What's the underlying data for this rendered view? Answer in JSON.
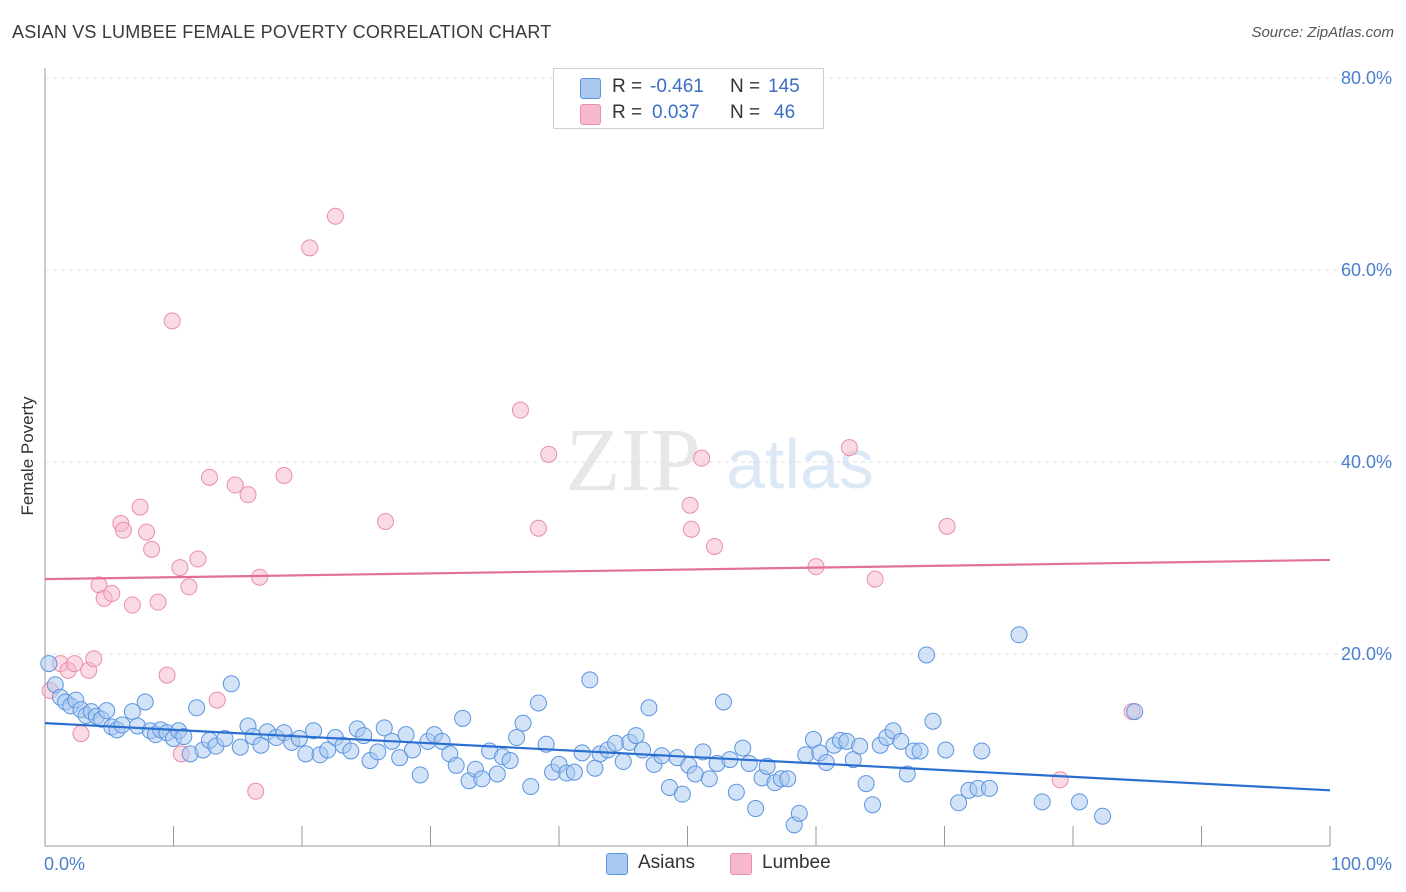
{
  "title": "ASIAN VS LUMBEE FEMALE POVERTY CORRELATION CHART",
  "source": "Source: ZipAtlas.com",
  "watermark": {
    "zip": "ZIP",
    "atlas": "atlas"
  },
  "legend": {
    "rows": [
      {
        "r_label": "R =",
        "r_value": "-0.461",
        "n_label": "N =",
        "n_value": "145",
        "color": "#a8c8f0"
      },
      {
        "r_label": "R =",
        "r_value": "0.037",
        "n_label": "N =",
        "n_value": "46",
        "color": "#f6b8cb"
      }
    ]
  },
  "bottom_legend": [
    {
      "label": "Asians",
      "color": "#a8c8f0"
    },
    {
      "label": "Lumbee",
      "color": "#f6b8cb"
    }
  ],
  "chart_data": {
    "type": "scatter",
    "title": "ASIAN VS LUMBEE FEMALE POVERTY CORRELATION CHART",
    "xlabel": "",
    "ylabel": "Female Poverty",
    "x_tick_labels": [
      "0.0%",
      "100.0%"
    ],
    "y_tick_labels": [
      "20.0%",
      "40.0%",
      "60.0%",
      "80.0%"
    ],
    "y_ticks": [
      20,
      40,
      60,
      80
    ],
    "xlim": [
      0,
      100
    ],
    "ylim": [
      0,
      80
    ],
    "grid": true,
    "legend_position": "top-center",
    "series": [
      {
        "name": "Asians",
        "color": "#5b95e0",
        "fill": "#a8c8f0",
        "trend": {
          "x": [
            0,
            100
          ],
          "y": [
            12.8,
            5.8
          ],
          "color": "#2a6fd0"
        },
        "points": [
          [
            0.3,
            19.0
          ],
          [
            0.8,
            16.8
          ],
          [
            1.2,
            15.5
          ],
          [
            1.6,
            15.0
          ],
          [
            2.0,
            14.6
          ],
          [
            2.4,
            15.2
          ],
          [
            2.8,
            14.2
          ],
          [
            3.2,
            13.6
          ],
          [
            3.6,
            14.0
          ],
          [
            4.0,
            13.5
          ],
          [
            4.4,
            13.2
          ],
          [
            4.8,
            14.1
          ],
          [
            5.2,
            12.4
          ],
          [
            5.6,
            12.1
          ],
          [
            6.0,
            12.6
          ],
          [
            6.8,
            14.0
          ],
          [
            7.2,
            12.5
          ],
          [
            7.8,
            15.0
          ],
          [
            8.2,
            12.0
          ],
          [
            8.6,
            11.6
          ],
          [
            9.0,
            12.1
          ],
          [
            9.5,
            11.8
          ],
          [
            10.0,
            11.2
          ],
          [
            10.4,
            12.0
          ],
          [
            10.8,
            11.4
          ],
          [
            11.3,
            9.6
          ],
          [
            11.8,
            14.4
          ],
          [
            12.3,
            10.0
          ],
          [
            12.8,
            11.0
          ],
          [
            13.3,
            10.4
          ],
          [
            14.0,
            11.2
          ],
          [
            14.5,
            16.9
          ],
          [
            15.2,
            10.3
          ],
          [
            15.8,
            12.5
          ],
          [
            16.2,
            11.4
          ],
          [
            16.8,
            10.5
          ],
          [
            17.3,
            11.9
          ],
          [
            18.0,
            11.3
          ],
          [
            18.6,
            11.8
          ],
          [
            19.2,
            10.8
          ],
          [
            19.8,
            11.2
          ],
          [
            20.3,
            9.6
          ],
          [
            20.9,
            12.0
          ],
          [
            21.4,
            9.5
          ],
          [
            22.0,
            10.0
          ],
          [
            22.6,
            11.3
          ],
          [
            23.2,
            10.5
          ],
          [
            23.8,
            9.9
          ],
          [
            24.3,
            12.2
          ],
          [
            24.8,
            11.5
          ],
          [
            25.3,
            8.9
          ],
          [
            25.9,
            9.8
          ],
          [
            26.4,
            12.3
          ],
          [
            27.0,
            10.9
          ],
          [
            27.6,
            9.2
          ],
          [
            28.1,
            11.6
          ],
          [
            28.6,
            10.0
          ],
          [
            29.2,
            7.4
          ],
          [
            29.8,
            10.9
          ],
          [
            30.3,
            11.6
          ],
          [
            30.9,
            10.9
          ],
          [
            31.5,
            9.6
          ],
          [
            32.0,
            8.4
          ],
          [
            32.5,
            13.3
          ],
          [
            33.0,
            6.8
          ],
          [
            33.5,
            8.0
          ],
          [
            34.0,
            7.0
          ],
          [
            34.6,
            9.9
          ],
          [
            35.2,
            7.5
          ],
          [
            35.6,
            9.3
          ],
          [
            36.2,
            8.9
          ],
          [
            36.7,
            11.3
          ],
          [
            37.2,
            12.8
          ],
          [
            37.8,
            6.2
          ],
          [
            38.4,
            14.9
          ],
          [
            39.0,
            10.6
          ],
          [
            39.5,
            7.7
          ],
          [
            40.0,
            8.5
          ],
          [
            40.6,
            7.6
          ],
          [
            41.2,
            7.7
          ],
          [
            41.8,
            9.7
          ],
          [
            42.4,
            17.3
          ],
          [
            42.8,
            8.1
          ],
          [
            43.2,
            9.6
          ],
          [
            43.8,
            10.0
          ],
          [
            44.4,
            10.7
          ],
          [
            45.0,
            8.8
          ],
          [
            45.5,
            10.8
          ],
          [
            46.0,
            11.5
          ],
          [
            46.5,
            10.0
          ],
          [
            47.0,
            14.4
          ],
          [
            47.4,
            8.5
          ],
          [
            48.0,
            9.4
          ],
          [
            48.6,
            6.1
          ],
          [
            49.2,
            9.2
          ],
          [
            49.6,
            5.4
          ],
          [
            50.1,
            8.4
          ],
          [
            50.6,
            7.5
          ],
          [
            51.2,
            9.8
          ],
          [
            51.7,
            7.0
          ],
          [
            52.3,
            8.6
          ],
          [
            52.8,
            15.0
          ],
          [
            53.3,
            9.0
          ],
          [
            53.8,
            5.6
          ],
          [
            54.3,
            10.2
          ],
          [
            54.8,
            8.6
          ],
          [
            55.3,
            3.9
          ],
          [
            55.8,
            7.1
          ],
          [
            56.2,
            8.3
          ],
          [
            56.8,
            6.6
          ],
          [
            57.3,
            7.0
          ],
          [
            57.8,
            7.0
          ],
          [
            58.3,
            2.2
          ],
          [
            58.7,
            3.4
          ],
          [
            59.2,
            9.5
          ],
          [
            59.8,
            11.1
          ],
          [
            60.3,
            9.7
          ],
          [
            60.8,
            8.7
          ],
          [
            61.4,
            10.5
          ],
          [
            61.9,
            11.0
          ],
          [
            62.4,
            10.9
          ],
          [
            62.9,
            9.0
          ],
          [
            63.4,
            10.4
          ],
          [
            63.9,
            6.5
          ],
          [
            64.4,
            4.3
          ],
          [
            65.0,
            10.5
          ],
          [
            65.5,
            11.3
          ],
          [
            66.0,
            12.0
          ],
          [
            66.6,
            10.9
          ],
          [
            67.1,
            7.5
          ],
          [
            67.6,
            9.9
          ],
          [
            68.1,
            9.9
          ],
          [
            68.6,
            19.9
          ],
          [
            69.1,
            13.0
          ],
          [
            70.1,
            10.0
          ],
          [
            71.1,
            4.5
          ],
          [
            71.9,
            5.8
          ],
          [
            72.6,
            6.0
          ],
          [
            72.9,
            9.9
          ],
          [
            73.5,
            6.0
          ],
          [
            75.8,
            22.0
          ],
          [
            77.6,
            4.6
          ],
          [
            80.5,
            4.6
          ],
          [
            82.3,
            3.1
          ],
          [
            84.8,
            14.0
          ]
        ]
      },
      {
        "name": "Lumbee",
        "color": "#ea8eab",
        "fill": "#f6b8cb",
        "trend": {
          "x": [
            0,
            100
          ],
          "y": [
            27.8,
            29.8
          ],
          "color": "#e27099"
        },
        "points": [
          [
            0.4,
            16.2
          ],
          [
            1.2,
            19.0
          ],
          [
            1.8,
            18.3
          ],
          [
            2.3,
            19.0
          ],
          [
            2.8,
            11.7
          ],
          [
            3.4,
            18.3
          ],
          [
            3.8,
            19.5
          ],
          [
            4.2,
            27.2
          ],
          [
            4.6,
            25.8
          ],
          [
            5.2,
            26.3
          ],
          [
            5.9,
            33.6
          ],
          [
            6.1,
            32.9
          ],
          [
            6.8,
            25.1
          ],
          [
            7.4,
            35.3
          ],
          [
            7.9,
            32.7
          ],
          [
            8.3,
            30.9
          ],
          [
            8.8,
            25.4
          ],
          [
            9.5,
            17.8
          ],
          [
            9.9,
            54.7
          ],
          [
            10.5,
            29.0
          ],
          [
            10.6,
            9.6
          ],
          [
            11.2,
            27.0
          ],
          [
            11.9,
            29.9
          ],
          [
            12.8,
            38.4
          ],
          [
            13.4,
            15.2
          ],
          [
            14.8,
            37.6
          ],
          [
            15.8,
            36.6
          ],
          [
            16.4,
            5.7
          ],
          [
            16.7,
            28.0
          ],
          [
            18.6,
            38.6
          ],
          [
            20.6,
            62.3
          ],
          [
            22.6,
            65.6
          ],
          [
            26.5,
            33.8
          ],
          [
            37.0,
            45.4
          ],
          [
            38.4,
            33.1
          ],
          [
            39.2,
            40.8
          ],
          [
            50.2,
            35.5
          ],
          [
            50.3,
            33.0
          ],
          [
            51.1,
            40.4
          ],
          [
            52.1,
            31.2
          ],
          [
            60.0,
            29.1
          ],
          [
            62.6,
            41.5
          ],
          [
            64.6,
            27.8
          ],
          [
            70.2,
            33.3
          ],
          [
            79.0,
            6.9
          ],
          [
            84.6,
            14.0
          ]
        ]
      }
    ]
  }
}
